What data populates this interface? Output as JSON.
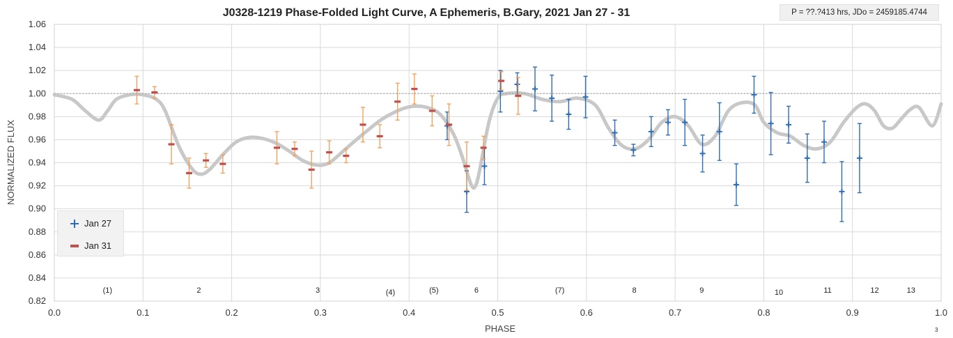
{
  "title": "J0328-1219 Phase-Folded Light Curve, A Ephemeris, B.Gary, 2021 Jan 27 - 31",
  "info_box": "P = ??.?413 hrs, JDo = 2459185.4744",
  "legend": [
    {
      "label": "Jan 27",
      "marker": "plus",
      "color": "#2e6db4"
    },
    {
      "label": "Jan 31",
      "marker": "dash",
      "color": "#c0504d"
    }
  ],
  "footnote": "3",
  "chart_data": {
    "type": "scatter",
    "title": "J0328-1219 Phase-Folded Light Curve, A Ephemeris, B.Gary, 2021 Jan 27 - 31",
    "xlabel": "PHASE",
    "ylabel": "NORMALIZED FLUX",
    "xlim": [
      0.0,
      1.0
    ],
    "ylim": [
      0.82,
      1.06
    ],
    "xticks": [
      "0.0",
      "0.1",
      "0.2",
      "0.3",
      "0.4",
      "0.5",
      "0.6",
      "0.7",
      "0.8",
      "0.9",
      "1.0"
    ],
    "yticks": [
      "0.82",
      "0.84",
      "0.86",
      "0.88",
      "0.90",
      "0.92",
      "0.94",
      "0.96",
      "0.98",
      "1.00",
      "1.02",
      "1.04",
      "1.06"
    ],
    "grid": true,
    "legend_position": "bottom-left",
    "reference_line": {
      "y": 1.0,
      "style": "dotted"
    },
    "colors": {
      "jan27": "#2e6db4",
      "jan31": "#c0504d",
      "errbar31": "#f0a35e",
      "model": "#c8c8c8",
      "grid": "#d9d9d9"
    },
    "series": [
      {
        "name": "Jan 27",
        "marker": "plus",
        "points": [
          {
            "x": 0.465,
            "y": 0.915,
            "err": 0.018
          },
          {
            "x": 0.485,
            "y": 0.937,
            "err": 0.016
          },
          {
            "x": 0.503,
            "y": 1.002,
            "err": 0.018
          },
          {
            "x": 0.522,
            "y": 1.008,
            "err": 0.01
          },
          {
            "x": 0.542,
            "y": 1.004,
            "err": 0.019
          },
          {
            "x": 0.561,
            "y": 0.996,
            "err": 0.02
          },
          {
            "x": 0.58,
            "y": 0.982,
            "err": 0.013
          },
          {
            "x": 0.599,
            "y": 0.997,
            "err": 0.018
          },
          {
            "x": 0.632,
            "y": 0.966,
            "err": 0.011
          },
          {
            "x": 0.653,
            "y": 0.951,
            "err": 0.005
          },
          {
            "x": 0.673,
            "y": 0.967,
            "err": 0.013
          },
          {
            "x": 0.692,
            "y": 0.975,
            "err": 0.011
          },
          {
            "x": 0.711,
            "y": 0.975,
            "err": 0.02
          },
          {
            "x": 0.731,
            "y": 0.948,
            "err": 0.016
          },
          {
            "x": 0.75,
            "y": 0.967,
            "err": 0.025
          },
          {
            "x": 0.769,
            "y": 0.921,
            "err": 0.018
          },
          {
            "x": 0.789,
            "y": 0.999,
            "err": 0.016
          },
          {
            "x": 0.808,
            "y": 0.974,
            "err": 0.027
          },
          {
            "x": 0.828,
            "y": 0.973,
            "err": 0.016
          },
          {
            "x": 0.849,
            "y": 0.944,
            "err": 0.021
          },
          {
            "x": 0.868,
            "y": 0.958,
            "err": 0.018
          },
          {
            "x": 0.888,
            "y": 0.915,
            "err": 0.026
          },
          {
            "x": 0.908,
            "y": 0.944,
            "err": 0.03
          },
          {
            "x": 0.443,
            "y": 0.972,
            "err": 0.012
          }
        ]
      },
      {
        "name": "Jan 31",
        "marker": "dash",
        "points": [
          {
            "x": 0.093,
            "y": 1.003,
            "err": 0.012
          },
          {
            "x": 0.113,
            "y": 1.001,
            "err": 0.005
          },
          {
            "x": 0.132,
            "y": 0.956,
            "err": 0.017
          },
          {
            "x": 0.152,
            "y": 0.931,
            "err": 0.013
          },
          {
            "x": 0.171,
            "y": 0.942,
            "err": 0.006
          },
          {
            "x": 0.19,
            "y": 0.939,
            "err": 0.008
          },
          {
            "x": 0.251,
            "y": 0.953,
            "err": 0.014
          },
          {
            "x": 0.271,
            "y": 0.952,
            "err": 0.006
          },
          {
            "x": 0.29,
            "y": 0.934,
            "err": 0.016
          },
          {
            "x": 0.31,
            "y": 0.949,
            "err": 0.01
          },
          {
            "x": 0.329,
            "y": 0.946,
            "err": 0.006
          },
          {
            "x": 0.348,
            "y": 0.973,
            "err": 0.015
          },
          {
            "x": 0.367,
            "y": 0.963,
            "err": 0.01
          },
          {
            "x": 0.387,
            "y": 0.993,
            "err": 0.016
          },
          {
            "x": 0.406,
            "y": 1.004,
            "err": 0.013
          },
          {
            "x": 0.426,
            "y": 0.985,
            "err": 0.013
          },
          {
            "x": 0.445,
            "y": 0.973,
            "err": 0.018
          },
          {
            "x": 0.465,
            "y": 0.937,
            "err": 0.021
          },
          {
            "x": 0.484,
            "y": 0.953,
            "err": 0.01
          },
          {
            "x": 0.504,
            "y": 1.011,
            "err": 0.008
          },
          {
            "x": 0.523,
            "y": 0.998,
            "err": 0.016
          }
        ]
      }
    ],
    "model_curve": {
      "x": [
        0.0,
        0.02,
        0.035,
        0.05,
        0.06,
        0.07,
        0.085,
        0.1,
        0.115,
        0.125,
        0.14,
        0.155,
        0.165,
        0.175,
        0.19,
        0.205,
        0.22,
        0.235,
        0.25,
        0.265,
        0.28,
        0.295,
        0.31,
        0.33,
        0.35,
        0.37,
        0.39,
        0.405,
        0.42,
        0.435,
        0.45,
        0.46,
        0.47,
        0.475,
        0.48,
        0.49,
        0.5,
        0.51,
        0.53,
        0.55,
        0.57,
        0.59,
        0.61,
        0.625,
        0.64,
        0.655,
        0.67,
        0.685,
        0.7,
        0.715,
        0.73,
        0.745,
        0.76,
        0.775,
        0.79,
        0.8,
        0.815,
        0.83,
        0.845,
        0.86,
        0.875,
        0.89,
        0.905,
        0.915,
        0.925,
        0.935,
        0.945,
        0.955,
        0.965,
        0.975,
        0.99,
        1.0
      ],
      "y": [
        0.999,
        0.995,
        0.985,
        0.977,
        0.985,
        0.995,
        0.999,
        0.999,
        0.995,
        0.985,
        0.955,
        0.935,
        0.93,
        0.934,
        0.947,
        0.958,
        0.962,
        0.961,
        0.957,
        0.95,
        0.942,
        0.938,
        0.94,
        0.953,
        0.966,
        0.978,
        0.986,
        0.989,
        0.988,
        0.982,
        0.965,
        0.945,
        0.921,
        0.92,
        0.935,
        0.975,
        0.996,
        1.0,
        1.0,
        0.995,
        0.993,
        0.996,
        0.99,
        0.97,
        0.955,
        0.952,
        0.96,
        0.975,
        0.98,
        0.972,
        0.956,
        0.963,
        0.985,
        0.992,
        0.99,
        0.975,
        0.966,
        0.963,
        0.955,
        0.952,
        0.958,
        0.975,
        0.988,
        0.991,
        0.985,
        0.972,
        0.97,
        0.978,
        0.986,
        0.988,
        0.972,
        0.991
      ]
    },
    "annotations": [
      {
        "text": "(1)",
        "x": 0.06
      },
      {
        "text": "2",
        "x": 0.163
      },
      {
        "text": "3",
        "x": 0.297
      },
      {
        "text": "(4)",
        "x": 0.379
      },
      {
        "text": "(5)",
        "x": 0.428
      },
      {
        "text": "6",
        "x": 0.476
      },
      {
        "text": "(7)",
        "x": 0.57
      },
      {
        "text": "8",
        "x": 0.654
      },
      {
        "text": "9",
        "x": 0.73
      },
      {
        "text": "10",
        "x": 0.817
      },
      {
        "text": "11",
        "x": 0.872
      },
      {
        "text": "12",
        "x": 0.925
      },
      {
        "text": "13",
        "x": 0.966
      }
    ]
  }
}
